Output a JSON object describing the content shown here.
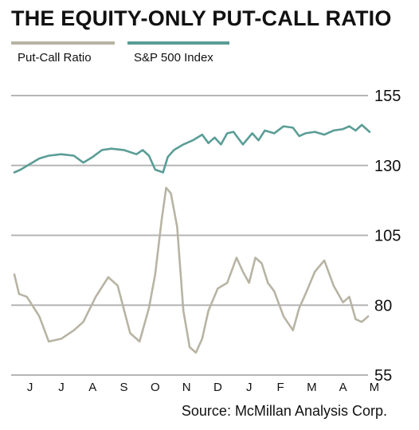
{
  "header": {
    "title": "THE EQUITY-ONLY PUT-CALL RATIO"
  },
  "colors": {
    "put_call": "#b8b4a4",
    "sp500": "#5a9d96",
    "grid": "#b5b5b5",
    "text": "#111111"
  },
  "footer": {
    "source": "Source: McMillan Analysis Corp."
  },
  "chart_data": {
    "type": "line",
    "title": "THE EQUITY-ONLY PUT-CALL RATIO",
    "xlabel": "",
    "ylabel": "",
    "ylim": [
      55,
      155
    ],
    "yticks": [
      155,
      130,
      105,
      80,
      55
    ],
    "grid": true,
    "legend_position": "top-left",
    "x_tick_labels": [
      "J",
      "J",
      "A",
      "S",
      "O",
      "N",
      "D",
      "J",
      "F",
      "M",
      "A",
      "M"
    ],
    "series": [
      {
        "name": "Put-Call Ratio",
        "color": "#b8b4a4",
        "x": [
          0,
          0.15,
          0.4,
          0.8,
          1.1,
          1.5,
          1.9,
          2.2,
          2.6,
          3.0,
          3.3,
          3.7,
          4.0,
          4.3,
          4.5,
          4.7,
          4.85,
          5.0,
          5.2,
          5.4,
          5.6,
          5.8,
          6.0,
          6.2,
          6.5,
          6.8,
          7.1,
          7.3,
          7.5,
          7.7,
          7.9,
          8.1,
          8.3,
          8.6,
          8.9,
          9.1,
          9.3,
          9.6,
          9.9,
          10.2,
          10.5,
          10.7,
          10.9,
          11.1,
          11.3
        ],
        "values": [
          91,
          84,
          83,
          76,
          67,
          68,
          71,
          74,
          83,
          90,
          87,
          70,
          67,
          79,
          91,
          110,
          122,
          120,
          108,
          78,
          65,
          63,
          68,
          78,
          86,
          88,
          97,
          92,
          88,
          97,
          95,
          88,
          85,
          76,
          71,
          79,
          84,
          92,
          96,
          87,
          81,
          83,
          75,
          74,
          76
        ]
      },
      {
        "name": "S&P 500 Index",
        "color": "#5a9d96",
        "x": [
          0,
          0.2,
          0.5,
          0.8,
          1.1,
          1.5,
          1.9,
          2.2,
          2.5,
          2.8,
          3.1,
          3.5,
          3.9,
          4.1,
          4.3,
          4.5,
          4.75,
          4.9,
          5.1,
          5.4,
          5.7,
          6.0,
          6.2,
          6.4,
          6.6,
          6.8,
          7.0,
          7.3,
          7.6,
          7.8,
          8.0,
          8.3,
          8.6,
          8.9,
          9.1,
          9.3,
          9.6,
          9.9,
          10.2,
          10.5,
          10.7,
          10.9,
          11.1,
          11.35
        ],
        "values": [
          127.5,
          128.5,
          130.5,
          132.5,
          133.5,
          134.0,
          133.5,
          131.0,
          133.0,
          135.5,
          136.0,
          135.5,
          134.0,
          135.5,
          133.5,
          128.5,
          127.5,
          133.0,
          135.5,
          137.5,
          139.0,
          141.0,
          138.0,
          140.0,
          137.5,
          141.5,
          142.0,
          137.5,
          141.5,
          139.0,
          142.5,
          141.5,
          144.0,
          143.5,
          140.5,
          141.5,
          142.0,
          141.0,
          142.5,
          143.0,
          144.0,
          142.5,
          144.5,
          142.0
        ]
      }
    ]
  }
}
